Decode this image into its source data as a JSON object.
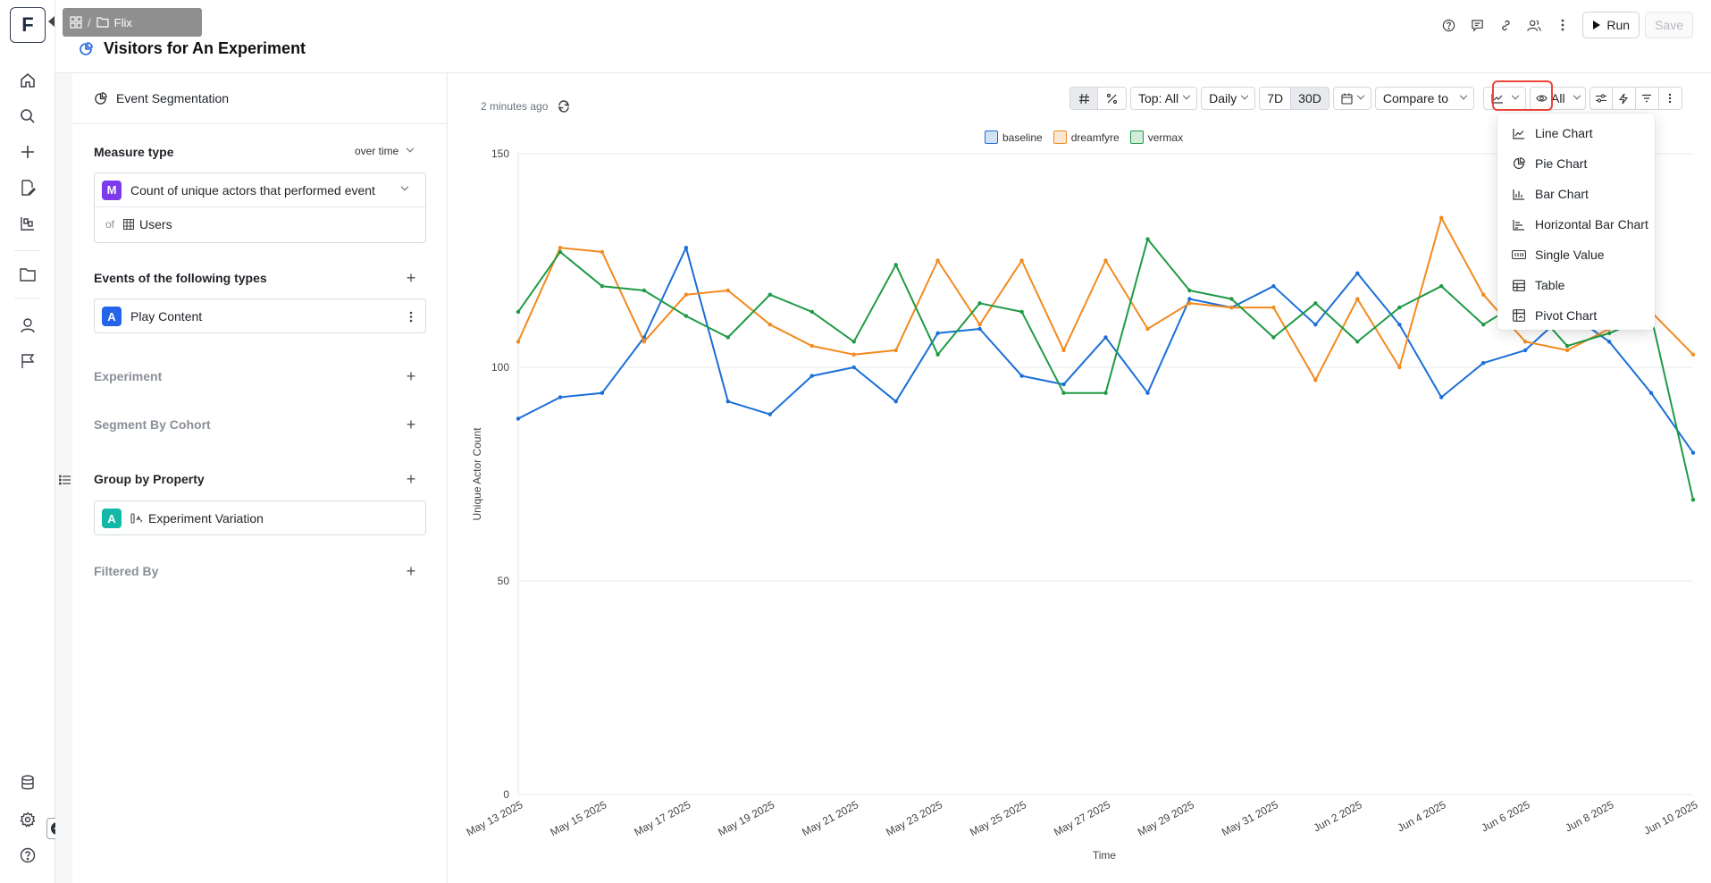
{
  "logo": "F",
  "breadcrumb": {
    "folder": "Flix"
  },
  "header": {
    "title": "Visitors for An Experiment"
  },
  "top_actions": {
    "run": "Run",
    "save": "Save"
  },
  "panel": {
    "title": "Event Segmentation",
    "measure": {
      "label": "Measure type",
      "mode": "over time",
      "badge": "M",
      "value": "Count of unique actors that performed event",
      "of_label": "of",
      "of_value": "Users"
    },
    "events": {
      "label": "Events of the following types",
      "badge": "A",
      "value": "Play Content"
    },
    "experiment": {
      "label": "Experiment"
    },
    "cohort": {
      "label": "Segment By Cohort"
    },
    "group_by": {
      "label": "Group by Property",
      "badge": "A",
      "value": "Experiment Variation"
    },
    "filtered": {
      "label": "Filtered By"
    }
  },
  "main": {
    "updated": "2 minutes ago",
    "toolbar": {
      "top": "Top: All",
      "interval": "Daily",
      "range_7d": "7D",
      "range_30d": "30D",
      "compare": "Compare to",
      "visibility": "All"
    }
  },
  "menu": {
    "items": [
      {
        "label": "Line Chart",
        "icon": "line-chart-icon"
      },
      {
        "label": "Pie Chart",
        "icon": "pie-chart-icon"
      },
      {
        "label": "Bar Chart",
        "icon": "bar-chart-icon"
      },
      {
        "label": "Horizontal Bar Chart",
        "icon": "horizontal-bar-chart-icon"
      },
      {
        "label": "Single Value",
        "icon": "single-value-icon"
      },
      {
        "label": "Table",
        "icon": "table-icon"
      },
      {
        "label": "Pivot Chart",
        "icon": "pivot-chart-icon"
      }
    ]
  },
  "colors": {
    "baseline": "#1a6fd6",
    "dreamfyre": "#f28a1e",
    "vermax": "#1f9a45",
    "highlight": "#f04438"
  },
  "chart_data": {
    "type": "line",
    "xlabel": "Time",
    "ylabel": "Unique Actor Count",
    "ylim": [
      0,
      150
    ],
    "yticks": [
      0,
      50,
      100,
      150
    ],
    "legend_position": "top-center",
    "x_tick_labels": [
      "May 13 2025",
      "May 15 2025",
      "May 17 2025",
      "May 19 2025",
      "May 21 2025",
      "May 23 2025",
      "May 25 2025",
      "May 27 2025",
      "May 29 2025",
      "May 31 2025",
      "Jun 2 2025",
      "Jun 4 2025",
      "Jun 6 2025",
      "Jun 8 2025",
      "Jun 10 2025"
    ],
    "x": [
      "May 13 2025",
      "May 14 2025",
      "May 15 2025",
      "May 16 2025",
      "May 17 2025",
      "May 18 2025",
      "May 19 2025",
      "May 20 2025",
      "May 21 2025",
      "May 22 2025",
      "May 23 2025",
      "May 24 2025",
      "May 25 2025",
      "May 26 2025",
      "May 27 2025",
      "May 28 2025",
      "May 29 2025",
      "May 30 2025",
      "May 31 2025",
      "Jun 1 2025",
      "Jun 2 2025",
      "Jun 3 2025",
      "Jun 4 2025",
      "Jun 5 2025",
      "Jun 6 2025",
      "Jun 7 2025",
      "Jun 8 2025",
      "Jun 9 2025",
      "Jun 10 2025"
    ],
    "series": [
      {
        "name": "baseline",
        "color": "#1a6fd6",
        "values": [
          88,
          93,
          94,
          107,
          128,
          92,
          89,
          98,
          100,
          92,
          108,
          109,
          98,
          96,
          107,
          94,
          116,
          114,
          119,
          110,
          122,
          110,
          93,
          101,
          104,
          113,
          106,
          94,
          80
        ]
      },
      {
        "name": "dreamfyre",
        "color": "#f28a1e",
        "values": [
          106,
          128,
          127,
          106,
          117,
          118,
          110,
          105,
          103,
          104,
          125,
          110,
          125,
          104,
          125,
          109,
          115,
          114,
          114,
          97,
          116,
          100,
          135,
          117,
          106,
          104,
          109,
          113,
          103
        ]
      },
      {
        "name": "vermax",
        "color": "#1f9a45",
        "values": [
          113,
          127,
          119,
          118,
          112,
          107,
          117,
          113,
          106,
          124,
          103,
          115,
          113,
          94,
          94,
          130,
          118,
          116,
          107,
          115,
          106,
          114,
          119,
          110,
          116,
          105,
          108,
          112,
          69
        ]
      }
    ]
  }
}
